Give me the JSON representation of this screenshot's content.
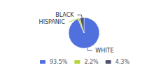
{
  "chart_data": {
    "type": "pie",
    "categories": [
      "WHITE",
      "HISPANIC",
      "BLACK"
    ],
    "values": [
      93.5,
      2.2,
      4.3
    ],
    "value_labels": [
      "93.5%",
      "2.2%",
      "4.3%"
    ],
    "legend": "bottom"
  }
}
